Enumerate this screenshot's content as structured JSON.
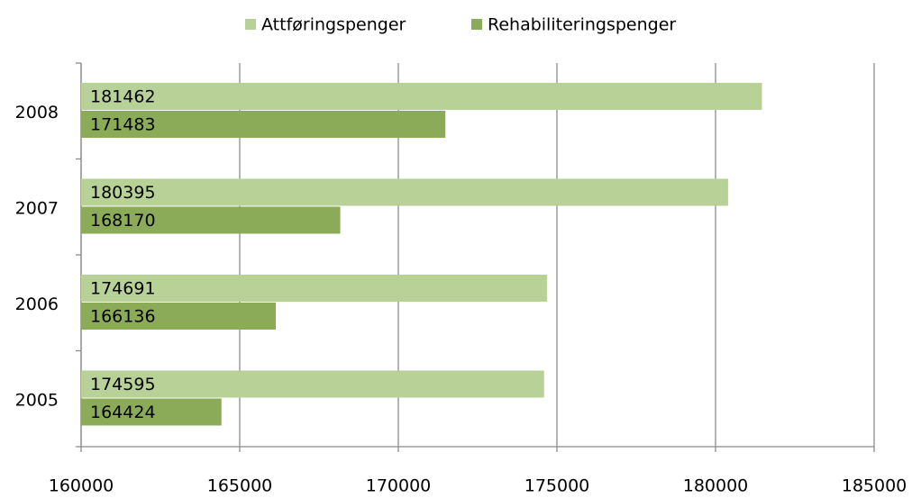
{
  "chart_data": {
    "type": "hbar",
    "categories": [
      "2005",
      "2006",
      "2007",
      "2008"
    ],
    "series": [
      {
        "name": "Attføringspenger",
        "color": "#b7d197",
        "values": [
          174595,
          174691,
          180395,
          181462
        ]
      },
      {
        "name": "Rehabiliteringspenger",
        "color": "#8bab58",
        "values": [
          164424,
          166136,
          168170,
          171483
        ]
      }
    ],
    "xlim": [
      160000,
      185000
    ],
    "xticks": [
      160000,
      165000,
      170000,
      175000,
      180000,
      185000
    ],
    "grid": true,
    "legend": "top"
  }
}
